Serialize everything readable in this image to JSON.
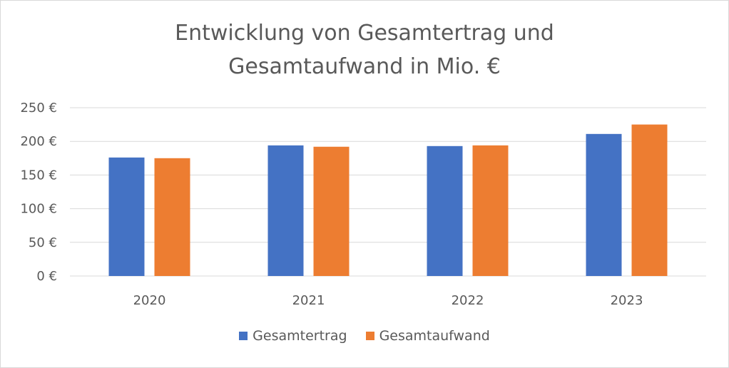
{
  "chart_data": {
    "type": "bar",
    "title_lines": [
      "Entwicklung von Gesamtertrag und",
      "Gesamtaufwand in Mio. €"
    ],
    "categories": [
      "2020",
      "2021",
      "2022",
      "2023"
    ],
    "y_ticks": [
      "0 €",
      "50 €",
      "100 €",
      "150 €",
      "200 €",
      "250 €"
    ],
    "ylim": [
      0,
      250
    ],
    "grid": true,
    "legend_position": "bottom",
    "series": [
      {
        "name": "Gesamtertrag",
        "color": "#4472C4",
        "values": [
          176,
          194,
          193,
          211
        ]
      },
      {
        "name": "Gesamtaufwand",
        "color": "#ED7D31",
        "values": [
          175,
          192,
          194,
          225
        ]
      }
    ]
  }
}
